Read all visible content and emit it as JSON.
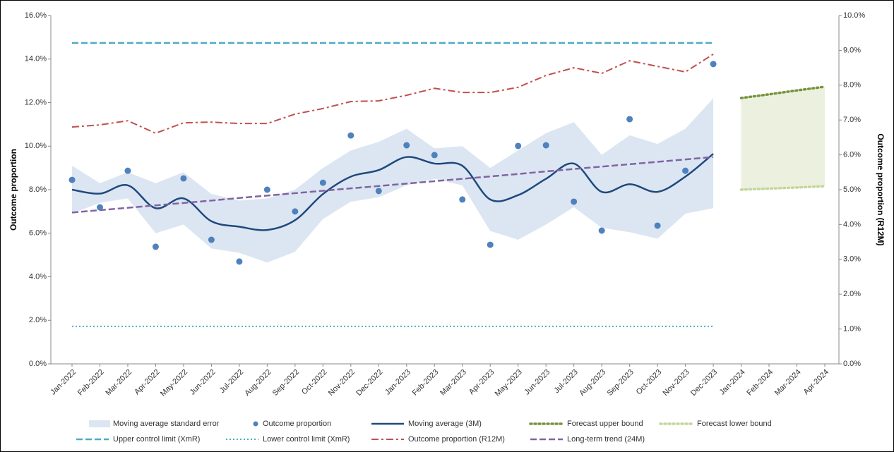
{
  "chart_data": {
    "type": "line",
    "y_label": "Outcome proportion",
    "y2_label": "Outcome proportion (R12M)",
    "categories": [
      "Jan-2022",
      "Feb-2022",
      "Mar-2022",
      "Apr-2022",
      "May-2022",
      "Jun-2022",
      "Jul-2022",
      "Aug-2022",
      "Sep-2022",
      "Oct-2022",
      "Nov-2022",
      "Dec-2022",
      "Jan-2023",
      "Feb-2023",
      "Mar-2023",
      "Apr-2023",
      "May-2023",
      "Jun-2023",
      "Jul-2023",
      "Aug-2023",
      "Sep-2023",
      "Oct-2023",
      "Nov-2023",
      "Dec-2023",
      "Jan-2024",
      "Feb-2024",
      "Mar-2024",
      "Apr-2024"
    ],
    "ylim": [
      0,
      16
    ],
    "yticks": [
      {
        "value": 0,
        "label": "0.0%"
      },
      {
        "value": 2,
        "label": "2.0%"
      },
      {
        "value": 4,
        "label": "4.0%"
      },
      {
        "value": 6,
        "label": "6.0%"
      },
      {
        "value": 8,
        "label": "8.0%"
      },
      {
        "value": 10,
        "label": "10.0%"
      },
      {
        "value": 12,
        "label": "12.0%"
      },
      {
        "value": 14,
        "label": "14.0%"
      },
      {
        "value": 16,
        "label": "16.0%"
      }
    ],
    "y2lim": [
      0,
      10
    ],
    "y2ticks": [
      {
        "value": 0,
        "label": "0.0%"
      },
      {
        "value": 1,
        "label": "1.0%"
      },
      {
        "value": 2,
        "label": "2.0%"
      },
      {
        "value": 3,
        "label": "3.0%"
      },
      {
        "value": 4,
        "label": "4.0%"
      },
      {
        "value": 5,
        "label": "5.0%"
      },
      {
        "value": 6,
        "label": "6.0%"
      },
      {
        "value": 7,
        "label": "7.0%"
      },
      {
        "value": 8,
        "label": "8.0%"
      },
      {
        "value": 9,
        "label": "9.0%"
      },
      {
        "value": 10,
        "label": "10.0%"
      }
    ],
    "grid": false,
    "legend": "bottom",
    "series": [
      {
        "name": "Moving average standard error",
        "style": "band",
        "color": "#dce6f2",
        "upper": [
          9.1,
          8.3,
          8.8,
          8.3,
          8.8,
          7.8,
          7.5,
          7.6,
          8.0,
          9.0,
          9.8,
          10.2,
          10.8,
          9.9,
          10.0,
          9.0,
          9.8,
          10.6,
          11.1,
          9.6,
          10.5,
          10.1,
          10.8,
          12.2,
          null,
          null,
          null,
          null
        ],
        "lower": [
          6.9,
          7.4,
          7.6,
          6.0,
          6.4,
          5.3,
          5.1,
          4.65,
          5.15,
          6.65,
          7.45,
          7.65,
          8.2,
          8.5,
          8.2,
          6.1,
          5.7,
          6.4,
          7.2,
          6.25,
          6.05,
          5.75,
          6.9,
          7.15,
          null,
          null,
          null,
          null
        ]
      },
      {
        "name": "Outcome proportion",
        "style": "markers",
        "color": "#4f81bd",
        "values": [
          8.45,
          7.19,
          8.87,
          5.38,
          8.52,
          5.7,
          4.7,
          8.0,
          7.0,
          8.32,
          10.49,
          7.94,
          10.04,
          9.59,
          7.55,
          5.47,
          10.01,
          10.04,
          7.45,
          6.12,
          11.24,
          6.35,
          8.87,
          13.77,
          null,
          null,
          null,
          null
        ]
      },
      {
        "name": "Moving average (3M)",
        "style": "smooth",
        "color": "#1f497d",
        "values": [
          8.0,
          7.82,
          8.2,
          7.15,
          7.6,
          6.55,
          6.3,
          6.15,
          6.6,
          7.8,
          8.6,
          8.9,
          9.5,
          9.2,
          9.1,
          7.55,
          7.75,
          8.5,
          9.2,
          7.9,
          8.25,
          7.9,
          8.6,
          9.65,
          null,
          null,
          null,
          null
        ]
      },
      {
        "name": "Forecast upper bound",
        "style": "thickdotted",
        "color": "#77933c",
        "fill_to": 4,
        "fill_color": "#ebf1de",
        "values": [
          null,
          null,
          null,
          null,
          null,
          null,
          null,
          null,
          null,
          null,
          null,
          null,
          null,
          null,
          null,
          null,
          null,
          null,
          null,
          null,
          null,
          null,
          null,
          null,
          12.21,
          12.38,
          12.56,
          12.73
        ]
      },
      {
        "name": "Forecast lower bound",
        "style": "thickdotted",
        "color": "#c3d69b",
        "values": [
          null,
          null,
          null,
          null,
          null,
          null,
          null,
          null,
          null,
          null,
          null,
          null,
          null,
          null,
          null,
          null,
          null,
          null,
          null,
          null,
          null,
          null,
          null,
          null,
          8.0,
          8.05,
          8.1,
          8.16
        ]
      },
      {
        "name": "Upper control limit (XmR)",
        "style": "dashed",
        "color": "#4bacc6",
        "values": [
          14.74,
          14.74,
          14.74,
          14.74,
          14.74,
          14.74,
          14.74,
          14.74,
          14.74,
          14.74,
          14.74,
          14.74,
          14.74,
          14.74,
          14.74,
          14.74,
          14.74,
          14.74,
          14.74,
          14.74,
          14.74,
          14.74,
          14.74,
          14.74,
          null,
          null,
          null,
          null
        ]
      },
      {
        "name": "Lower control limit (XmR)",
        "style": "dotted",
        "color": "#4bacc6",
        "values": [
          1.72,
          1.72,
          1.72,
          1.72,
          1.72,
          1.72,
          1.72,
          1.72,
          1.72,
          1.72,
          1.72,
          1.72,
          1.72,
          1.72,
          1.72,
          1.72,
          1.72,
          1.72,
          1.72,
          1.72,
          1.72,
          1.72,
          1.72,
          1.72,
          null,
          null,
          null,
          null
        ]
      },
      {
        "name": "Outcome proportion (R12M)",
        "style": "dashdot",
        "color": "#c0504d",
        "axis": "y2",
        "values": [
          6.8,
          6.86,
          6.98,
          6.62,
          6.92,
          6.94,
          6.9,
          6.9,
          7.17,
          7.33,
          7.53,
          7.55,
          7.71,
          7.91,
          7.79,
          7.79,
          7.94,
          8.28,
          8.5,
          8.34,
          8.7,
          8.54,
          8.38,
          8.89,
          null,
          null,
          null,
          null
        ]
      },
      {
        "name": "Long-term trend (24M)",
        "style": "dashed",
        "color": "#8064a2",
        "values": [
          6.95,
          7.06,
          7.17,
          7.28,
          7.39,
          7.5,
          7.62,
          7.73,
          7.84,
          7.95,
          8.06,
          8.17,
          8.28,
          8.39,
          8.5,
          8.61,
          8.72,
          8.84,
          8.95,
          9.06,
          9.17,
          9.28,
          9.39,
          9.5,
          null,
          null,
          null,
          null
        ]
      }
    ]
  }
}
